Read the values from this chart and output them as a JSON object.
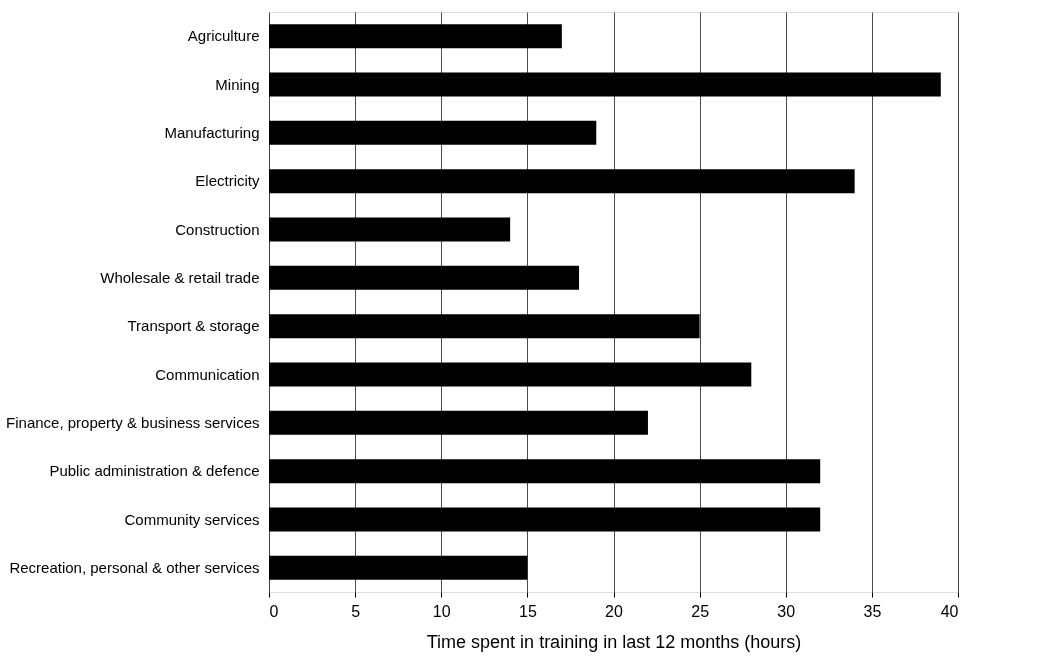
{
  "chart_data": {
    "type": "bar",
    "orientation": "horizontal",
    "categories": [
      "Agriculture",
      "Mining",
      "Manufacturing",
      "Electricity",
      "Construction",
      "Wholesale & retail trade",
      "Transport & storage",
      "Communication",
      "Finance, property & business services",
      "Public administration & defence",
      "Community services",
      "Recreation, personal & other services"
    ],
    "values": [
      17,
      39,
      19,
      34,
      14,
      18,
      25,
      28,
      22,
      32,
      32,
      15
    ],
    "color": "#000000",
    "xlabel": "Time spent in training in last 12 months (hours)",
    "xlim": [
      0,
      40
    ],
    "xticks": [
      0,
      5,
      10,
      15,
      20,
      25,
      30,
      35,
      40
    ],
    "grid": "x"
  }
}
